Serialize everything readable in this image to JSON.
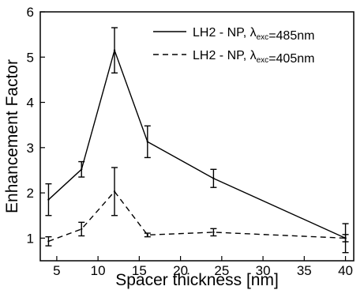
{
  "chart_data": {
    "type": "line",
    "xlabel": "Spacer thickness [nm]",
    "ylabel": "Enhancement Factor",
    "xlim": [
      3,
      41
    ],
    "ylim": [
      0.5,
      6
    ],
    "xticks": [
      5,
      10,
      15,
      20,
      25,
      30,
      35,
      40
    ],
    "yticks": [
      1,
      2,
      3,
      4,
      5,
      6
    ],
    "grid": false,
    "legend_position": "top-right",
    "series": [
      {
        "name_prefix": "LH2 - NP, ",
        "name_symbol": "λ",
        "name_subscript": "exc",
        "name_suffix": "=485nm",
        "line_style": "solid",
        "x": [
          4,
          8,
          12,
          16,
          24,
          40
        ],
        "y": [
          1.85,
          2.52,
          5.15,
          3.13,
          2.32,
          1.0
        ],
        "err": [
          0.35,
          0.17,
          0.5,
          0.35,
          0.2,
          0.08
        ]
      },
      {
        "name_prefix": "LH2 - NP, ",
        "name_symbol": "λ",
        "name_subscript": "exc",
        "name_suffix": "=405nm",
        "line_style": "dashed",
        "x": [
          4,
          8,
          12,
          16,
          24,
          40
        ],
        "y": [
          0.93,
          1.2,
          2.03,
          1.07,
          1.13,
          1.0
        ],
        "err": [
          0.1,
          0.15,
          0.53,
          0.04,
          0.08,
          0.32
        ]
      }
    ]
  }
}
